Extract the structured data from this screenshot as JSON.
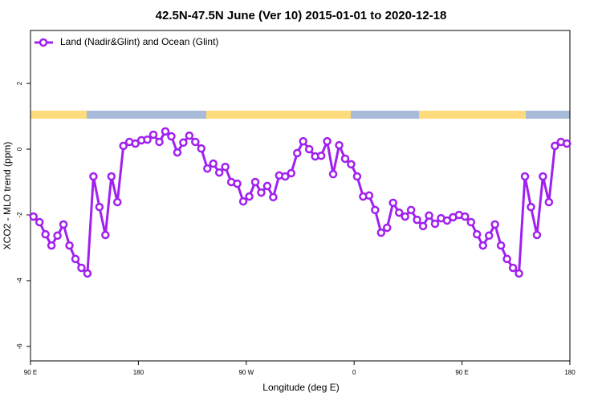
{
  "chart_data": {
    "type": "line",
    "title": "42.5N-47.5N June (Ver 10)   2015-01-01 to 2020-12-18",
    "xlabel": "Longitude (deg E)",
    "ylabel": "XCO2 - MLO trend (ppm)",
    "x": [
      92.5,
      97.5,
      102.5,
      107.5,
      112.5,
      117.5,
      122.5,
      127.5,
      132.5,
      137.5,
      142.5,
      147.5,
      152.5,
      157.5,
      162.5,
      167.5,
      172.5,
      177.5,
      182.5,
      187.5,
      192.5,
      197.5,
      202.5,
      207.5,
      212.5,
      217.5,
      222.5,
      227.5,
      232.5,
      237.5,
      242.5,
      247.5,
      252.5,
      257.5,
      262.5,
      267.5,
      272.5,
      277.5,
      282.5,
      287.5,
      292.5,
      297.5,
      302.5,
      307.5,
      312.5,
      317.5,
      322.5,
      327.5,
      332.5,
      337.5,
      342.5,
      347.5,
      352.5,
      357.5,
      362.5,
      367.5,
      372.5,
      377.5,
      382.5,
      387.5,
      392.5,
      397.5,
      402.5,
      407.5,
      412.5,
      417.5,
      422.5,
      427.5,
      432.5,
      437.5,
      442.5,
      447.5,
      452.5,
      457.5,
      462.5,
      467.5,
      472.5,
      477.5,
      482.5,
      487.5,
      492.5,
      497.5,
      502.5,
      507.5,
      512.5,
      517.5,
      522.5,
      527.5,
      532.5,
      537.5
    ],
    "series": [
      {
        "name": "Land (Nadir&Glint) and Ocean (Glint)",
        "color": "#a020f0",
        "values": [
          -2.05,
          -2.22,
          -2.59,
          -2.93,
          -2.63,
          -2.29,
          -2.93,
          -3.34,
          -3.61,
          -3.78,
          -0.83,
          -1.76,
          -2.61,
          -0.83,
          -1.61,
          0.1,
          0.22,
          0.17,
          0.27,
          0.29,
          0.44,
          0.22,
          0.54,
          0.39,
          -0.1,
          0.2,
          0.41,
          0.22,
          0.02,
          -0.59,
          -0.44,
          -0.71,
          -0.54,
          -1.0,
          -1.05,
          -1.59,
          -1.44,
          -1.0,
          -1.32,
          -1.12,
          -1.46,
          -0.8,
          -0.83,
          -0.73,
          -0.12,
          0.24,
          0.0,
          -0.22,
          -0.2,
          0.24,
          -0.76,
          0.12,
          -0.29,
          -0.46,
          -0.83,
          -1.44,
          -1.41,
          -1.85,
          -2.54,
          -2.39,
          -1.63,
          -1.93,
          -2.05,
          -1.85,
          -2.15,
          -2.34,
          -2.02,
          -2.27,
          -2.1,
          -2.17,
          -2.07,
          -2.0,
          -2.05,
          -2.22,
          -2.59,
          -2.93,
          -2.63,
          -2.29,
          -2.93,
          -3.34,
          -3.61,
          -3.78,
          -0.83,
          -1.76,
          -2.61,
          -0.83,
          -1.61,
          0.1,
          0.22,
          0.17
        ]
      }
    ],
    "xlim": [
      90,
      540
    ],
    "xticks": [
      {
        "value": 90,
        "label": "90 E"
      },
      {
        "value": 180,
        "label": "180"
      },
      {
        "value": 270,
        "label": "90 W"
      },
      {
        "value": 360,
        "label": "0"
      },
      {
        "value": 450,
        "label": "90 E"
      },
      {
        "value": 540,
        "label": "180"
      }
    ],
    "ylim": [
      -6.44,
      3.61
    ],
    "yticks": [
      -6,
      -4,
      -2,
      0,
      2
    ],
    "legend": "top-left"
  }
}
